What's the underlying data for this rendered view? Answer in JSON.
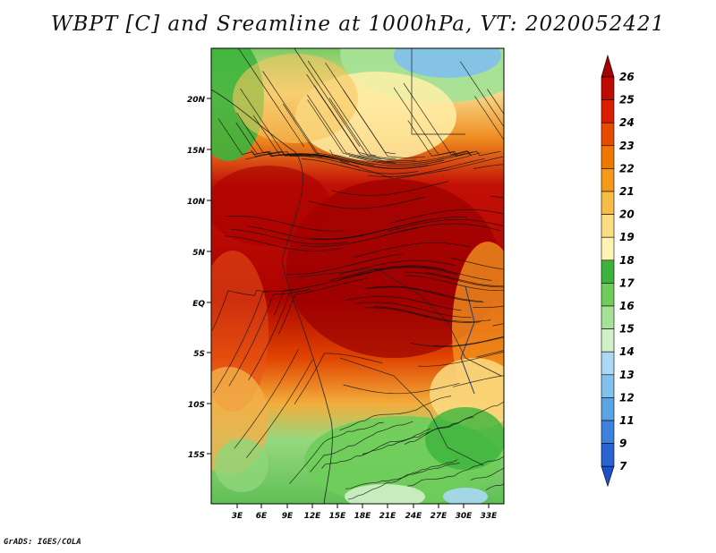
{
  "title": "WBPT [C] and Sreamline at 1000hPa, VT: 2020052421",
  "footer": "GrADS: IGES/COLA",
  "map": {
    "variable": "Wet-bulb potential temperature",
    "units": "C",
    "level": "1000hPa",
    "valid_time": "2020052421",
    "lat_labels": [
      "20N",
      "15N",
      "10N",
      "5N",
      "EQ",
      "5S",
      "10S",
      "15S"
    ],
    "lon_labels": [
      "3E",
      "6E",
      "9E",
      "12E",
      "15E",
      "18E",
      "21E",
      "24E",
      "27E",
      "30E",
      "33E"
    ]
  },
  "colorbar": {
    "labels": [
      "26",
      "25",
      "24",
      "23",
      "22",
      "21",
      "20",
      "19",
      "18",
      "17",
      "16",
      "15",
      "14",
      "13",
      "12",
      "11",
      "9",
      "7"
    ],
    "colors": [
      "#a50000",
      "#c00a00",
      "#dc1e00",
      "#e64b00",
      "#f07800",
      "#f59a18",
      "#f8bd45",
      "#fadc82",
      "#fff4b4",
      "#3cb43c",
      "#6ecd5a",
      "#a5e196",
      "#d2f0c8",
      "#aad8f5",
      "#82c0ee",
      "#5aa4e6",
      "#3c82dc",
      "#2864d2",
      "#1e50c8"
    ]
  }
}
